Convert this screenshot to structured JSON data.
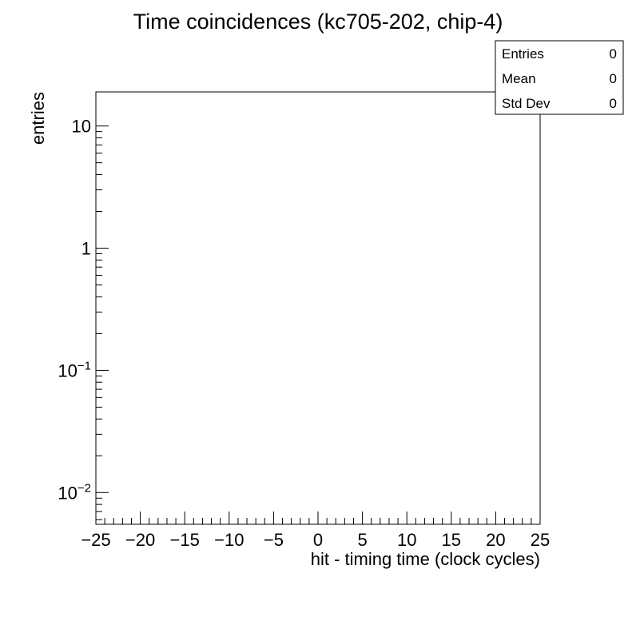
{
  "chart_data": {
    "type": "bar",
    "title": "Time coincidences (kc705-202, chip-4)",
    "xlabel": "hit - timing time (clock cycles)",
    "ylabel": "entries",
    "xlim": [
      -25,
      25
    ],
    "ylim": [
      0.0055,
      19
    ],
    "y_scale": "log",
    "x_major_ticks": [
      -25,
      -20,
      -15,
      -10,
      -5,
      0,
      5,
      10,
      15,
      20,
      25
    ],
    "x_tick_labels": [
      "−25",
      "−20",
      "−15",
      "−10",
      "−5",
      "0",
      "5",
      "10",
      "15",
      "20",
      "25"
    ],
    "y_major_ticks": [
      {
        "value": 0.01,
        "base": "10",
        "exp": "−2"
      },
      {
        "value": 0.1,
        "base": "10",
        "exp": "−1"
      },
      {
        "value": 1,
        "base": "1",
        "exp": ""
      },
      {
        "value": 10,
        "base": "10",
        "exp": ""
      }
    ],
    "values": [],
    "grid": false,
    "stats_box": {
      "position": "top-right",
      "rows": [
        {
          "label": "Entries",
          "value": "0"
        },
        {
          "label": "Mean",
          "value": "0"
        },
        {
          "label": "Std Dev",
          "value": "0"
        }
      ]
    }
  }
}
